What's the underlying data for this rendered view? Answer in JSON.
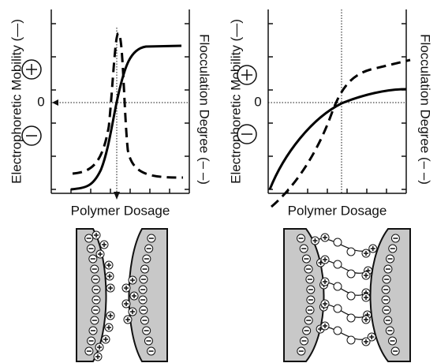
{
  "panels": [
    {
      "x_label": "Polymer Dosage",
      "y_label": "Electrophoretic Mobility (—)",
      "y2_label": "Flocculation Degree (– –)",
      "zero_label": "0"
    },
    {
      "x_label": "Polymer Dosage",
      "y_label": "Electrophoretic Mobility (—)",
      "y2_label": "Flocculation Degree (– –)",
      "zero_label": "0"
    }
  ]
}
